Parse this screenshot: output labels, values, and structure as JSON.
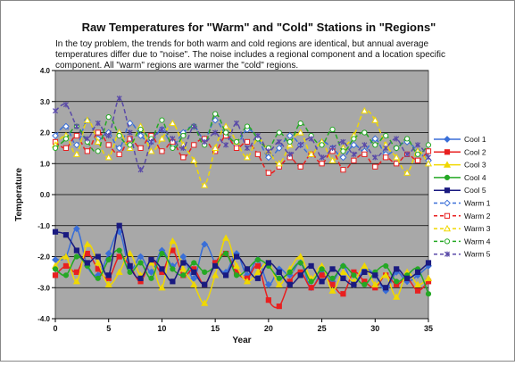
{
  "chart_data": {
    "type": "line",
    "title": "Raw Temperatures for \"Warm\" and \"Cold\" Stations in \"Regions\"",
    "annotation": [
      "In the toy problem, the trends for both warm and cold regions are identical, but annual average",
      "temperatures differ due to \"noise\".  The noise includes a regional component and a location specific",
      "component.  All \"warm\" regions are warmer the \"cold\" regions."
    ],
    "xlabel": "Year",
    "ylabel": "Temperature",
    "xlim": [
      0,
      35
    ],
    "ylim": [
      -4.0,
      4.0
    ],
    "x_ticks": [
      "0",
      "5",
      "10",
      "15",
      "20",
      "25",
      "30",
      "35"
    ],
    "y_ticks": [
      "-4.0",
      "-3.0",
      "-2.0",
      "-1.0",
      "0.0",
      "1.0",
      "2.0",
      "3.0",
      "4.0"
    ],
    "grid": true,
    "legend_position": "right",
    "x": [
      0,
      1,
      2,
      3,
      4,
      5,
      6,
      7,
      8,
      9,
      10,
      11,
      12,
      13,
      14,
      15,
      16,
      17,
      18,
      19,
      20,
      21,
      22,
      23,
      24,
      25,
      26,
      27,
      28,
      29,
      30,
      31,
      32,
      33,
      34,
      35
    ],
    "series": [
      {
        "name": "Cool 1",
        "color": "#3a6fd8",
        "dash": false,
        "marker": "diamond-filled",
        "values": [
          -2.1,
          -2.0,
          -1.1,
          -2.3,
          -2.6,
          -1.9,
          -1.2,
          -2.4,
          -2.0,
          -2.5,
          -1.8,
          -2.3,
          -2.0,
          -2.7,
          -1.6,
          -2.2,
          -2.5,
          -1.9,
          -2.6,
          -2.1,
          -2.9,
          -2.4,
          -2.6,
          -2.2,
          -3.0,
          -2.5,
          -2.8,
          -2.3,
          -2.9,
          -2.4,
          -2.6,
          -3.1,
          -2.5,
          -2.8,
          -2.6,
          -2.3
        ]
      },
      {
        "name": "Cool 2",
        "color": "#e82020",
        "dash": false,
        "marker": "square-filled",
        "values": [
          -2.6,
          -2.3,
          -2.5,
          -1.9,
          -2.4,
          -2.7,
          -2.0,
          -2.3,
          -2.8,
          -2.1,
          -2.5,
          -1.8,
          -2.6,
          -2.4,
          -2.9,
          -2.2,
          -1.9,
          -2.5,
          -2.7,
          -2.3,
          -3.4,
          -3.6,
          -2.8,
          -2.5,
          -3.0,
          -2.6,
          -2.9,
          -3.2,
          -2.5,
          -2.8,
          -3.0,
          -2.6,
          -2.9,
          -2.7,
          -3.1,
          -2.8
        ]
      },
      {
        "name": "Cool 3",
        "color": "#f0d800",
        "dash": false,
        "marker": "triangle-filled",
        "values": [
          -2.3,
          -2.0,
          -2.8,
          -1.6,
          -2.2,
          -2.9,
          -2.5,
          -1.9,
          -2.6,
          -2.2,
          -3.0,
          -1.5,
          -2.4,
          -2.9,
          -3.5,
          -2.6,
          -1.4,
          -2.3,
          -2.8,
          -2.5,
          -2.2,
          -2.9,
          -2.4,
          -2.0,
          -2.7,
          -2.3,
          -3.1,
          -2.5,
          -2.8,
          -2.3,
          -2.9,
          -2.6,
          -3.3,
          -2.5,
          -2.9,
          -2.7
        ]
      },
      {
        "name": "Cool 4",
        "color": "#25a825",
        "dash": false,
        "marker": "circle-filled",
        "values": [
          -2.4,
          -2.6,
          -2.0,
          -2.3,
          -2.7,
          -2.1,
          -1.8,
          -2.5,
          -2.2,
          -2.7,
          -1.9,
          -2.4,
          -2.6,
          -2.2,
          -2.5,
          -2.3,
          -1.9,
          -2.6,
          -2.4,
          -2.1,
          -2.3,
          -2.7,
          -2.5,
          -2.2,
          -2.8,
          -2.4,
          -2.7,
          -2.3,
          -2.6,
          -2.9,
          -2.5,
          -2.3,
          -2.8,
          -2.6,
          -2.4,
          -3.2
        ]
      },
      {
        "name": "Cool 5",
        "color": "#1a1a80",
        "dash": false,
        "marker": "square-filled",
        "values": [
          -1.2,
          -1.3,
          -1.8,
          -2.2,
          -2.0,
          -2.6,
          -1.0,
          -2.3,
          -2.7,
          -2.1,
          -2.4,
          -2.8,
          -2.2,
          -2.5,
          -2.9,
          -2.3,
          -2.6,
          -2.0,
          -2.4,
          -2.7,
          -2.2,
          -2.5,
          -2.9,
          -2.6,
          -2.3,
          -2.8,
          -2.4,
          -2.7,
          -2.9,
          -2.5,
          -2.6,
          -3.0,
          -2.4,
          -2.7,
          -2.5,
          -2.2
        ]
      },
      {
        "name": "Warm 1",
        "color": "#3a6fd8",
        "dash": true,
        "marker": "diamond-open",
        "values": [
          1.9,
          2.2,
          1.6,
          2.4,
          1.8,
          2.0,
          1.5,
          2.3,
          1.9,
          1.7,
          2.1,
          1.6,
          2.0,
          2.2,
          1.8,
          2.4,
          1.9,
          1.6,
          2.1,
          1.8,
          1.2,
          1.5,
          1.9,
          1.6,
          1.3,
          1.7,
          1.5,
          1.2,
          1.6,
          1.4,
          1.8,
          1.3,
          1.5,
          1.7,
          1.4,
          1.1
        ]
      },
      {
        "name": "Warm 2",
        "color": "#e82020",
        "dash": true,
        "marker": "square-open",
        "values": [
          1.7,
          1.5,
          1.9,
          1.4,
          2.0,
          1.6,
          1.3,
          1.8,
          1.5,
          1.9,
          1.4,
          1.7,
          1.2,
          1.6,
          1.8,
          1.4,
          1.9,
          1.5,
          1.7,
          1.3,
          0.7,
          0.9,
          1.2,
          0.9,
          1.3,
          1.0,
          1.4,
          0.8,
          1.1,
          1.3,
          0.9,
          1.2,
          1.0,
          1.3,
          1.1,
          1.4
        ]
      },
      {
        "name": "Warm 3",
        "color": "#f0d800",
        "dash": true,
        "marker": "triangle-open",
        "values": [
          1.6,
          1.9,
          1.3,
          2.4,
          1.7,
          1.2,
          2.0,
          1.5,
          2.2,
          1.4,
          1.8,
          2.3,
          1.6,
          1.1,
          0.3,
          1.5,
          2.2,
          1.7,
          1.2,
          1.8,
          1.4,
          1.0,
          1.6,
          2.0,
          1.3,
          1.7,
          1.1,
          1.5,
          1.9,
          2.7,
          2.4,
          1.6,
          1.2,
          0.7,
          1.4,
          1.0
        ]
      },
      {
        "name": "Warm 4",
        "color": "#25a825",
        "dash": true,
        "marker": "circle-open",
        "values": [
          1.5,
          1.8,
          2.2,
          1.7,
          1.4,
          2.5,
          1.9,
          1.6,
          2.1,
          1.8,
          2.4,
          1.5,
          1.9,
          2.2,
          1.6,
          2.6,
          2.0,
          1.7,
          2.2,
          1.8,
          1.5,
          2.0,
          1.7,
          2.3,
          1.9,
          1.6,
          2.1,
          1.4,
          1.8,
          2.0,
          1.6,
          1.9,
          1.5,
          1.8,
          1.3,
          1.6
        ]
      },
      {
        "name": "Warm 5",
        "color": "#5a4aa8",
        "dash": true,
        "marker": "star",
        "values": [
          2.7,
          2.9,
          2.2,
          1.8,
          2.3,
          1.9,
          3.1,
          2.0,
          0.8,
          1.7,
          2.1,
          1.8,
          1.5,
          2.2,
          1.7,
          2.0,
          1.6,
          2.3,
          1.5,
          1.9,
          1.4,
          1.7,
          1.3,
          1.6,
          1.8,
          1.2,
          1.5,
          1.7,
          1.3,
          1.6,
          1.2,
          1.5,
          1.8,
          1.3,
          1.6,
          1.2
        ]
      }
    ]
  }
}
